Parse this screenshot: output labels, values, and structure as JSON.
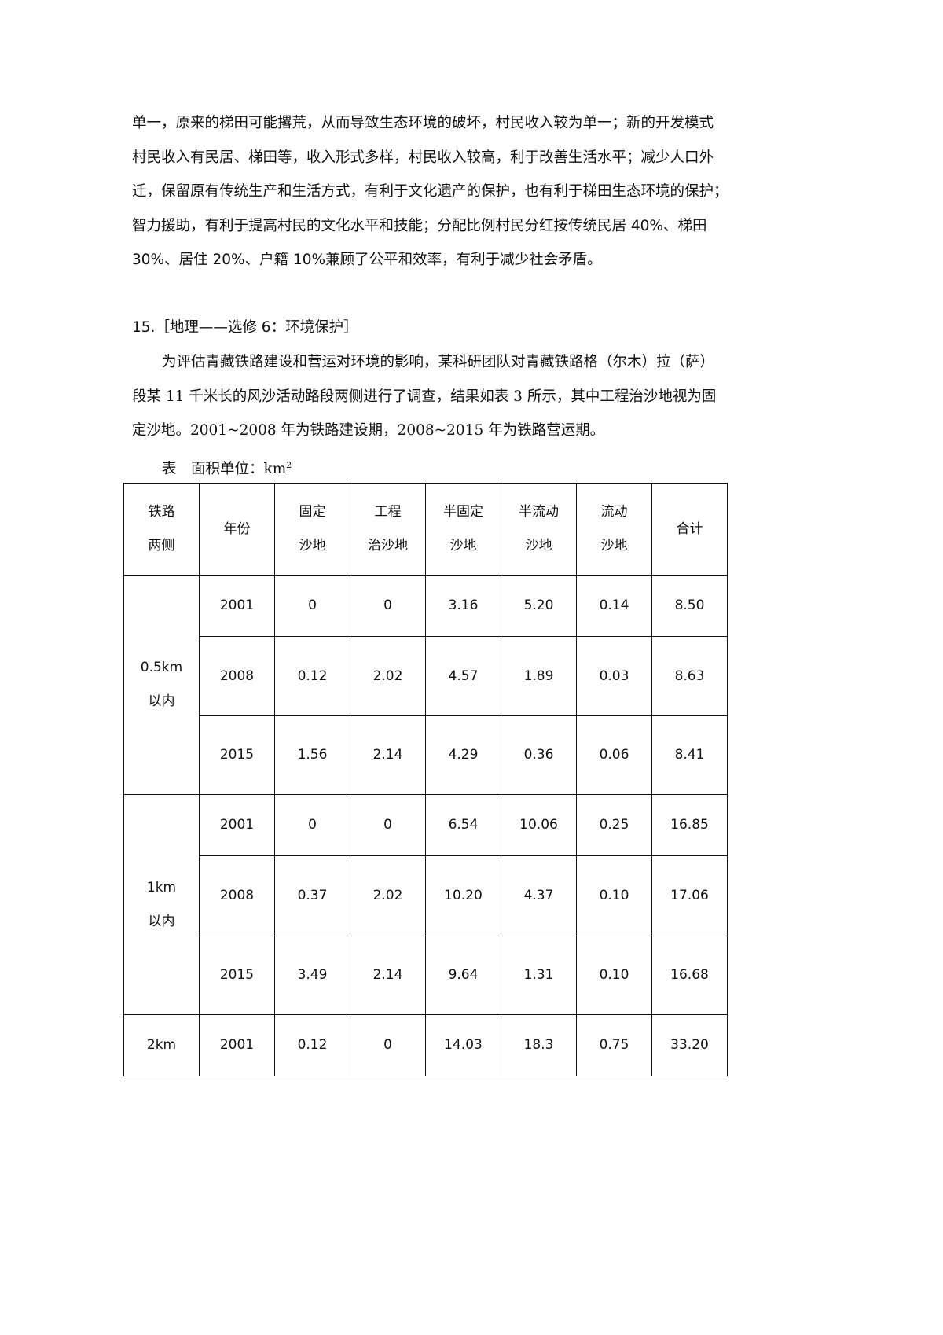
{
  "paragraph_lines": [
    "单一，原来的梯田可能撂荒，从而导致生态环境的破坏，村民收入较为单一；新的开发模式",
    "村民收入有民居、梯田等，收入形式多样，村民收入较高，利于改善生活水平；减少人口外",
    "迁，保留原有传统生产和生活方式，有利于文化遗产的保护，也有利于梯田生态环境的保护；",
    "智力援助，有利于提高村民的文化水平和技能；分配比例村民分红按传统民居 40%、梯田",
    "30%、居住 20%、户籍 10%兼顾了公平和效率，有利于减少社会矛盾。"
  ],
  "question": {
    "title": "15.［地理——选修 6：环境保护］",
    "lines": [
      "为评估青藏铁路建设和营运对环境的影响，某科研团队对青藏铁路格（尔木）拉（萨）",
      "段某 11 千米长的风沙活动路段两侧进行了调查，结果如表 3 所示，其中工程治沙地视为固",
      "定沙地。2001~2008 年为铁路建设期，2008~2015 年为铁路营运期。"
    ],
    "caption": "表　面积单位：km",
    "caption_sup": "2"
  },
  "table": {
    "headers": [
      [
        "铁路",
        "两侧"
      ],
      [
        "年份"
      ],
      [
        "固定",
        "沙地"
      ],
      [
        "工程",
        "治沙地"
      ],
      [
        "半固定",
        "沙地"
      ],
      [
        "半流动",
        "沙地"
      ],
      [
        "流动",
        "沙地"
      ],
      [
        "合计"
      ]
    ],
    "groups": [
      {
        "label": [
          "0.5km",
          "以内"
        ],
        "rows": [
          [
            "2001",
            "0",
            "0",
            "3.16",
            "5.20",
            "0.14",
            "8.50"
          ],
          [
            "2008",
            "0.12",
            "2.02",
            "4.57",
            "1.89",
            "0.03",
            "8.63"
          ],
          [
            "2015",
            "1.56",
            "2.14",
            "4.29",
            "0.36",
            "0.06",
            "8.41"
          ]
        ]
      },
      {
        "label": [
          "1km",
          "以内"
        ],
        "rows": [
          [
            "2001",
            "0",
            "0",
            "6.54",
            "10.06",
            "0.25",
            "16.85"
          ],
          [
            "2008",
            "0.37",
            "2.02",
            "10.20",
            "4.37",
            "0.10",
            "17.06"
          ],
          [
            "2015",
            "3.49",
            "2.14",
            "9.64",
            "1.31",
            "0.10",
            "16.68"
          ]
        ]
      },
      {
        "label": [
          "2km"
        ],
        "rows": [
          [
            "2001",
            "0.12",
            "0",
            "14.03",
            "18.3",
            "0.75",
            "33.20"
          ]
        ]
      }
    ]
  }
}
